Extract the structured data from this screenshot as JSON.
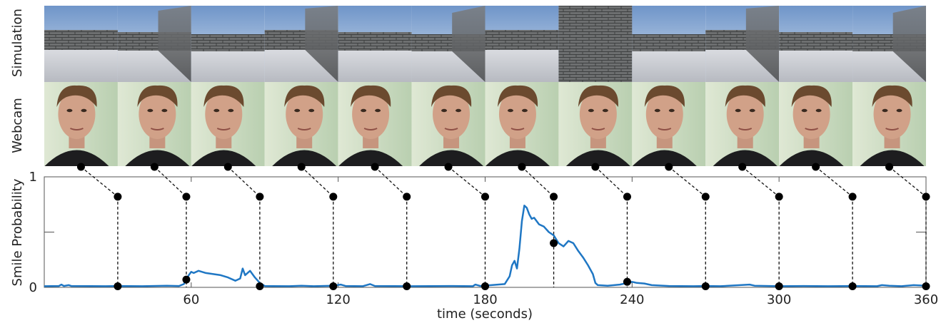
{
  "row_labels": {
    "simulation": "Simulation",
    "webcam": "Webcam"
  },
  "chart_data": {
    "type": "line",
    "title": "",
    "xlabel": "time (seconds)",
    "ylabel": "Smile Probability",
    "xlim": [
      0,
      360
    ],
    "ylim": [
      0,
      1
    ],
    "x_ticks": [
      60,
      120,
      180,
      240,
      300,
      360
    ],
    "y_tick_labels": [
      0,
      1
    ],
    "y_minor_ticks": [
      0.5
    ],
    "grid": false,
    "legend": "none",
    "series": [
      {
        "color": "#1f77c4",
        "points": [
          [
            0,
            0.01
          ],
          [
            6,
            0.012
          ],
          [
            7,
            0.025
          ],
          [
            8,
            0.012
          ],
          [
            10,
            0.02
          ],
          [
            11,
            0.012
          ],
          [
            25,
            0.01
          ],
          [
            30,
            0.012
          ],
          [
            40,
            0.01
          ],
          [
            50,
            0.015
          ],
          [
            55,
            0.012
          ],
          [
            57,
            0.03
          ],
          [
            58,
            0.07
          ],
          [
            59,
            0.11
          ],
          [
            60,
            0.14
          ],
          [
            61,
            0.13
          ],
          [
            63,
            0.15
          ],
          [
            66,
            0.13
          ],
          [
            69,
            0.12
          ],
          [
            72,
            0.11
          ],
          [
            75,
            0.09
          ],
          [
            78,
            0.06
          ],
          [
            80,
            0.08
          ],
          [
            81,
            0.17
          ],
          [
            82,
            0.11
          ],
          [
            84,
            0.15
          ],
          [
            86,
            0.09
          ],
          [
            88,
            0.04
          ],
          [
            90,
            0.012
          ],
          [
            100,
            0.01
          ],
          [
            105,
            0.015
          ],
          [
            110,
            0.01
          ],
          [
            118,
            0.015
          ],
          [
            121,
            0.025
          ],
          [
            123,
            0.012
          ],
          [
            130,
            0.01
          ],
          [
            133,
            0.03
          ],
          [
            135,
            0.012
          ],
          [
            150,
            0.01
          ],
          [
            165,
            0.012
          ],
          [
            175,
            0.01
          ],
          [
            176,
            0.025
          ],
          [
            178,
            0.012
          ],
          [
            188,
            0.03
          ],
          [
            190,
            0.1
          ],
          [
            191,
            0.2
          ],
          [
            192,
            0.24
          ],
          [
            193,
            0.17
          ],
          [
            194,
            0.35
          ],
          [
            195,
            0.6
          ],
          [
            196,
            0.74
          ],
          [
            197,
            0.72
          ],
          [
            198,
            0.66
          ],
          [
            199,
            0.62
          ],
          [
            200,
            0.63
          ],
          [
            202,
            0.57
          ],
          [
            204,
            0.55
          ],
          [
            206,
            0.5
          ],
          [
            208,
            0.47
          ],
          [
            210,
            0.4
          ],
          [
            212,
            0.37
          ],
          [
            214,
            0.42
          ],
          [
            216,
            0.4
          ],
          [
            218,
            0.33
          ],
          [
            220,
            0.27
          ],
          [
            222,
            0.2
          ],
          [
            224,
            0.12
          ],
          [
            225,
            0.04
          ],
          [
            226,
            0.02
          ],
          [
            230,
            0.015
          ],
          [
            235,
            0.025
          ],
          [
            240,
            0.05
          ],
          [
            242,
            0.04
          ],
          [
            245,
            0.035
          ],
          [
            248,
            0.02
          ],
          [
            255,
            0.012
          ],
          [
            265,
            0.01
          ],
          [
            270,
            0.012
          ],
          [
            276,
            0.01
          ],
          [
            288,
            0.025
          ],
          [
            290,
            0.015
          ],
          [
            300,
            0.01
          ],
          [
            310,
            0.012
          ],
          [
            320,
            0.01
          ],
          [
            330,
            0.012
          ],
          [
            340,
            0.01
          ],
          [
            342,
            0.02
          ],
          [
            345,
            0.015
          ],
          [
            350,
            0.01
          ],
          [
            355,
            0.02
          ],
          [
            360,
            0.015
          ]
        ]
      }
    ],
    "sample_markers": [
      {
        "t": 30,
        "p": 0.01
      },
      {
        "t": 58,
        "p": 0.07
      },
      {
        "t": 88,
        "p": 0.01
      },
      {
        "t": 118,
        "p": 0.01
      },
      {
        "t": 148,
        "p": 0.01
      },
      {
        "t": 180,
        "p": 0.01
      },
      {
        "t": 208,
        "p": 0.4
      },
      {
        "t": 238,
        "p": 0.05
      },
      {
        "t": 270,
        "p": 0.01
      },
      {
        "t": 300,
        "p": 0.01
      },
      {
        "t": 330,
        "p": 0.01
      },
      {
        "t": 360,
        "p": 0.01
      }
    ],
    "marker_top_value": 0.82
  }
}
